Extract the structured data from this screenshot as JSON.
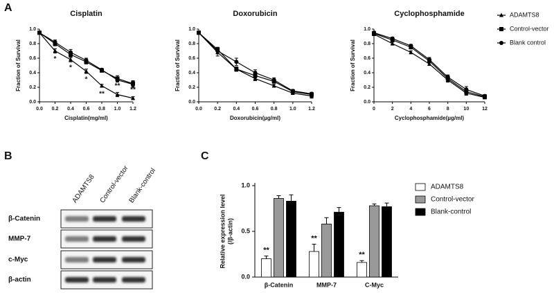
{
  "panel_labels": [
    "A",
    "B",
    "C"
  ],
  "chart_data": [
    {
      "type": "line",
      "title": "Cisplatin",
      "x_label": "Cisplatin(mg/ml)",
      "y_label": "Fraction of Survival",
      "x": [
        0,
        0.2,
        0.4,
        0.6,
        0.8,
        1.0,
        1.2
      ],
      "xlim": [
        0,
        1.2
      ],
      "xticks": [
        {
          "value": 0,
          "label": "0.0"
        },
        0.2,
        0.4,
        0.6,
        0.8,
        {
          "value": 1,
          "label": "1.0"
        },
        1.2
      ],
      "ylim": [
        0,
        1
      ],
      "yticks": [
        {
          "value": 0,
          "label": "0.0"
        },
        0.2,
        0.4,
        0.6,
        0.8,
        {
          "value": 1,
          "label": "1.0"
        }
      ],
      "legend": "right",
      "series": [
        {
          "name": "ADAMTS8",
          "marker": "triangle",
          "color": "#000000",
          "values": [
            0.95,
            0.7,
            0.58,
            0.42,
            0.22,
            0.1,
            0.05
          ],
          "errors": [
            0.02,
            0.03,
            0.03,
            0.03,
            0.02,
            0.03,
            0.02
          ],
          "annotations": [
            null,
            "*",
            "*",
            "*",
            "**",
            "**",
            "**"
          ]
        },
        {
          "name": "Control-vector",
          "marker": "square",
          "color": "#000000",
          "values": [
            0.95,
            0.8,
            0.65,
            0.55,
            0.43,
            0.32,
            0.25
          ],
          "errors": [
            0.02,
            0.03,
            0.03,
            0.03,
            0.02,
            0.04,
            0.04
          ]
        },
        {
          "name": "Blank control",
          "marker": "circle",
          "color": "#000000",
          "values": [
            0.95,
            0.82,
            0.68,
            0.57,
            0.44,
            0.3,
            0.24
          ],
          "errors": [
            0.02,
            0.03,
            0.04,
            0.03,
            0.02,
            0.03,
            0.04
          ]
        }
      ]
    },
    {
      "type": "line",
      "title": "Doxorubicin",
      "x_label": "Doxorubicin(µg/ml)",
      "y_label": "Fraction of Survival",
      "x": [
        0,
        0.2,
        0.4,
        0.6,
        0.8,
        1.0,
        1.2
      ],
      "xlim": [
        0,
        1.2
      ],
      "xticks": [
        {
          "value": 0,
          "label": "0.0"
        },
        0.2,
        0.4,
        0.6,
        0.8,
        {
          "value": 1,
          "label": "1.0"
        },
        1.2
      ],
      "ylim": [
        0,
        1
      ],
      "yticks": [
        {
          "value": 0,
          "label": "0.0"
        },
        0.2,
        0.4,
        0.6,
        0.8,
        {
          "value": 1,
          "label": "1.0"
        }
      ],
      "series": [
        {
          "marker": "triangle",
          "color": "#000000",
          "values": [
            0.95,
            0.68,
            0.45,
            0.32,
            0.22,
            0.12,
            0.08
          ],
          "errors": [
            0.02,
            0.05,
            0.03,
            0.03,
            0.02,
            0.02,
            0.03
          ]
        },
        {
          "marker": "square",
          "color": "#000000",
          "values": [
            0.95,
            0.72,
            0.45,
            0.36,
            0.28,
            0.14,
            0.1
          ],
          "errors": [
            0.02,
            0.03,
            0.03,
            0.03,
            0.02,
            0.02,
            0.03
          ]
        },
        {
          "marker": "circle",
          "color": "#000000",
          "values": [
            0.95,
            0.7,
            0.55,
            0.4,
            0.3,
            0.15,
            0.11
          ],
          "errors": [
            0.02,
            0.04,
            0.05,
            0.04,
            0.03,
            0.02,
            0.02
          ]
        }
      ]
    },
    {
      "type": "line",
      "title": "Cyclophosphamide",
      "x_label": "Cyclophosphamide(µg/ml)",
      "y_label": "Fraction of Survival",
      "x": [
        0,
        2,
        4,
        6,
        8,
        10,
        12
      ],
      "xlim": [
        0,
        12
      ],
      "xticks": [
        0,
        2,
        4,
        6,
        8,
        10,
        12
      ],
      "ylim": [
        0,
        1
      ],
      "yticks": [
        {
          "value": 0,
          "label": "0.0"
        },
        0.2,
        0.4,
        0.6,
        0.8,
        {
          "value": 1,
          "label": "1.0"
        }
      ],
      "series": [
        {
          "marker": "triangle",
          "color": "#000000",
          "values": [
            0.93,
            0.8,
            0.68,
            0.52,
            0.3,
            0.12,
            0.06
          ],
          "errors": [
            0.02,
            0.02,
            0.02,
            0.02,
            0.03,
            0.03,
            0.02
          ]
        },
        {
          "marker": "square",
          "color": "#000000",
          "values": [
            0.94,
            0.85,
            0.75,
            0.56,
            0.32,
            0.14,
            0.07
          ],
          "errors": [
            0.02,
            0.02,
            0.02,
            0.02,
            0.04,
            0.03,
            0.02
          ]
        },
        {
          "marker": "circle",
          "color": "#000000",
          "values": [
            0.95,
            0.87,
            0.77,
            0.58,
            0.34,
            0.17,
            0.08
          ],
          "errors": [
            0.02,
            0.02,
            0.02,
            0.03,
            0.03,
            0.04,
            0.02
          ]
        }
      ]
    },
    {
      "type": "bar",
      "y_label": [
        "Relative expression level",
        "(/β-actin)"
      ],
      "categories": [
        "β-Catenin",
        "MMP-7",
        "C-Myc"
      ],
      "ylim": [
        0,
        1
      ],
      "yticks": [
        {
          "value": 0,
          "label": "0.0"
        },
        0.5,
        {
          "value": 1,
          "label": "1.0"
        }
      ],
      "legend": "right",
      "series": [
        {
          "name": "ADAMTS8",
          "color": "#ffffff",
          "values": [
            0.2,
            0.28,
            0.16
          ],
          "errors": [
            0.03,
            0.08,
            0.02
          ],
          "annotations": [
            "**",
            "**",
            "**"
          ]
        },
        {
          "name": "Control-vector",
          "color": "#999999",
          "values": [
            0.86,
            0.58,
            0.78
          ],
          "errors": [
            0.03,
            0.07,
            0.02
          ]
        },
        {
          "name": "Blank-control",
          "color": "#000000",
          "values": [
            0.83,
            0.71,
            0.77
          ],
          "errors": [
            0.07,
            0.05,
            0.04
          ]
        }
      ]
    }
  ],
  "blot": {
    "lanes": [
      "ADAMTS8",
      "Control-vector",
      "Blank-control"
    ],
    "rows": [
      "β-Catenin",
      "MMP-7",
      "c-Myc",
      "β-actin"
    ]
  }
}
